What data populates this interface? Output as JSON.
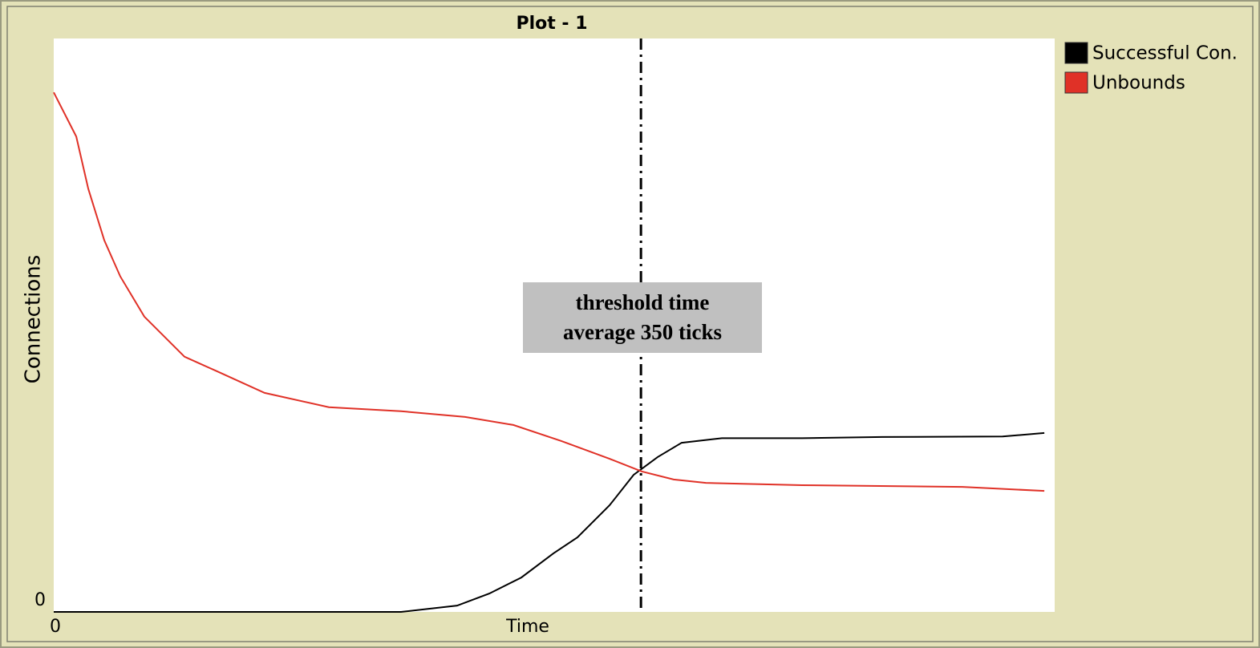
{
  "chart_data": {
    "type": "line",
    "title": "Plot - 1",
    "x_label": "Time",
    "y_label": "Connections",
    "xlim": [
      0,
      600
    ],
    "ylim": [
      0,
      100
    ],
    "xticks": [
      0
    ],
    "yticks": [
      0
    ],
    "series": [
      {
        "name": "Successful Con.",
        "color": "#000000",
        "x": [
          0,
          208.2,
          241.8,
          261.1,
          280.3,
          299.5,
          313.9,
          333.2,
          347.6,
          362.0,
          376.4,
          400.5,
          448.6,
          496.6,
          568.8,
          593.8
        ],
        "values": [
          0,
          0,
          1.1,
          3.2,
          6.0,
          10.2,
          13.0,
          18.6,
          23.9,
          27.0,
          29.5,
          30.3,
          30.3,
          30.5,
          30.6,
          31.2
        ]
      },
      {
        "name": "Unbounds",
        "color": "#e03127",
        "x": [
          0,
          13.5,
          20.7,
          30.3,
          39.9,
          54.3,
          78.4,
          97.6,
          126.4,
          164.9,
          208.2,
          246.6,
          275.5,
          304.3,
          333.2,
          352.4,
          371.6,
          390.9,
          448.6,
          544.7,
          593.8
        ],
        "values": [
          90.6,
          82.9,
          73.8,
          64.8,
          58.5,
          51.5,
          44.5,
          42.0,
          38.2,
          35.7,
          35.0,
          34.0,
          32.6,
          29.8,
          26.7,
          24.5,
          23.1,
          22.5,
          22.1,
          21.8,
          21.1
        ]
      }
    ],
    "annotation": {
      "lines": [
        "threshold time",
        "average 350 ticks"
      ],
      "x": 352
    }
  }
}
